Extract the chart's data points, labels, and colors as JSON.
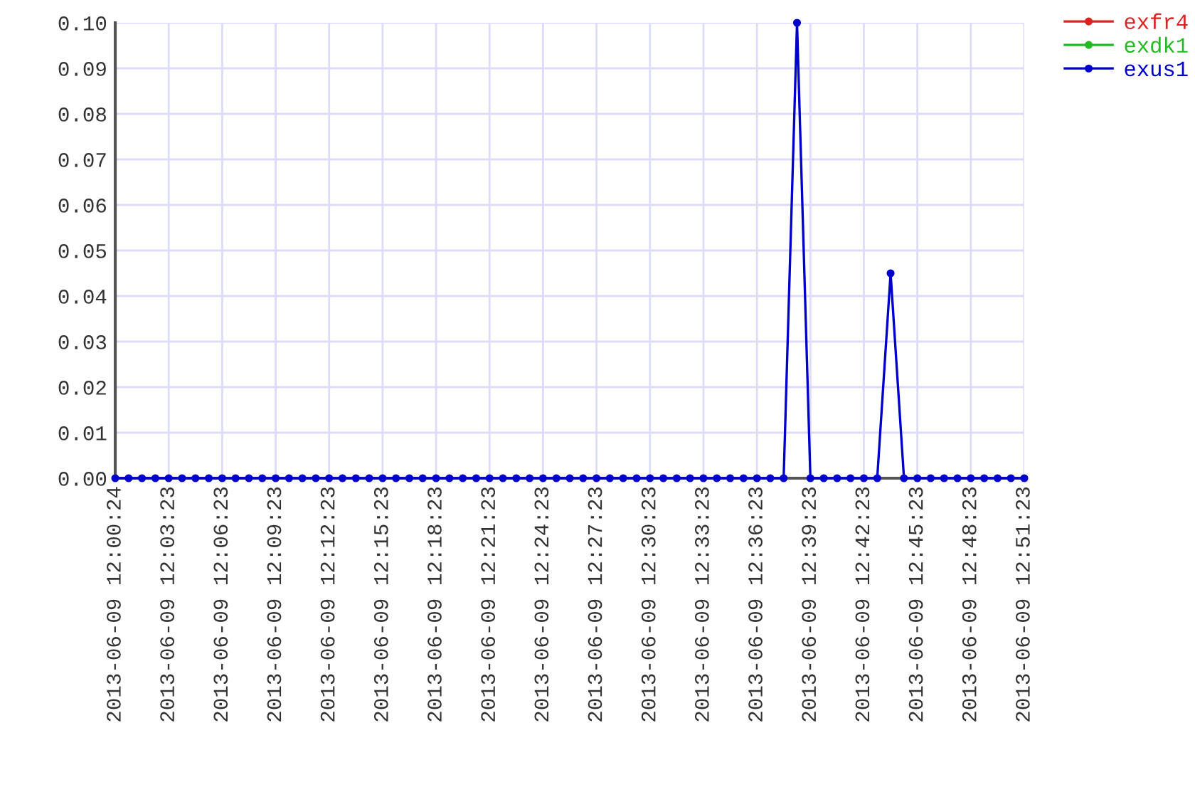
{
  "chart_data": {
    "type": "line",
    "categories": [
      "2013-06-09 12:00:24",
      null,
      null,
      null,
      "2013-06-09 12:03:23",
      null,
      null,
      null,
      "2013-06-09 12:06:23",
      null,
      null,
      null,
      "2013-06-09 12:09:23",
      null,
      null,
      null,
      "2013-06-09 12:12:23",
      null,
      null,
      null,
      "2013-06-09 12:15:23",
      null,
      null,
      null,
      "2013-06-09 12:18:23",
      null,
      null,
      null,
      "2013-06-09 12:21:23",
      null,
      null,
      null,
      "2013-06-09 12:24:23",
      null,
      null,
      null,
      "2013-06-09 12:27:23",
      null,
      null,
      null,
      "2013-06-09 12:30:23",
      null,
      null,
      null,
      "2013-06-09 12:33:23",
      null,
      null,
      null,
      "2013-06-09 12:36:23",
      null,
      null,
      null,
      "2013-06-09 12:39:23",
      null,
      null,
      null,
      "2013-06-09 12:42:23",
      null,
      null,
      null,
      "2013-06-09 12:45:23",
      null,
      null,
      null,
      "2013-06-09 12:48:23",
      null,
      null,
      null,
      "2013-06-09 12:51:23"
    ],
    "series": [
      {
        "name": "exfr4",
        "color": "#dd2222",
        "values": [
          null,
          null,
          null,
          null,
          null,
          null,
          null,
          null,
          null,
          null,
          null,
          null,
          null,
          null,
          null,
          null,
          null,
          null,
          null,
          null,
          null,
          null,
          null,
          null,
          null,
          null,
          null,
          null,
          null,
          null,
          null,
          null,
          null,
          null,
          null,
          null,
          null,
          null,
          null,
          null,
          null,
          null,
          null,
          null,
          null,
          null,
          null,
          null,
          null,
          null,
          null,
          null,
          null,
          null,
          null,
          null,
          null,
          null,
          null,
          null,
          null,
          null,
          null,
          null,
          null,
          null,
          null,
          null,
          null
        ]
      },
      {
        "name": "exdk1",
        "color": "#22bb22",
        "values": [
          null,
          null,
          null,
          null,
          null,
          null,
          null,
          null,
          null,
          null,
          null,
          null,
          null,
          null,
          null,
          null,
          null,
          null,
          null,
          null,
          null,
          null,
          null,
          null,
          null,
          null,
          null,
          null,
          null,
          null,
          null,
          null,
          null,
          null,
          null,
          null,
          null,
          null,
          null,
          null,
          null,
          null,
          null,
          null,
          null,
          null,
          null,
          null,
          null,
          null,
          null,
          null,
          null,
          null,
          null,
          null,
          null,
          null,
          null,
          null,
          null,
          null,
          null,
          null,
          null,
          null,
          null,
          null,
          null
        ]
      },
      {
        "name": "exus1",
        "color": "#0000cc",
        "values": [
          0,
          0,
          0,
          0,
          0,
          0,
          0,
          0,
          0,
          0,
          0,
          0,
          0,
          0,
          0,
          0,
          0,
          0,
          0,
          0,
          0,
          0,
          0,
          0,
          0,
          0,
          0,
          0,
          0,
          0,
          0,
          0,
          0,
          0,
          0,
          0,
          0,
          0,
          0,
          0,
          0,
          0,
          0,
          0,
          0,
          0,
          0,
          0,
          0,
          0,
          0,
          0.1,
          0,
          0,
          0,
          0,
          0,
          0,
          0.045,
          0,
          0,
          0,
          0,
          0,
          0,
          0,
          0,
          0,
          0
        ]
      }
    ],
    "ylim": [
      0,
      0.1
    ],
    "yticks": [
      {
        "value": 0,
        "label": "0.00"
      },
      {
        "value": 0.01,
        "label": "0.01"
      },
      {
        "value": 0.02,
        "label": "0.02"
      },
      {
        "value": 0.03,
        "label": "0.03"
      },
      {
        "value": 0.04,
        "label": "0.04"
      },
      {
        "value": 0.05,
        "label": "0.05"
      },
      {
        "value": 0.06,
        "label": "0.06"
      },
      {
        "value": 0.07,
        "label": "0.07"
      },
      {
        "value": 0.08,
        "label": "0.08"
      },
      {
        "value": 0.09,
        "label": "0.09"
      },
      {
        "value": 0.1,
        "label": "0.10"
      }
    ],
    "grid": true,
    "legend": "top right",
    "marker": "circle",
    "line_style": "solid"
  }
}
